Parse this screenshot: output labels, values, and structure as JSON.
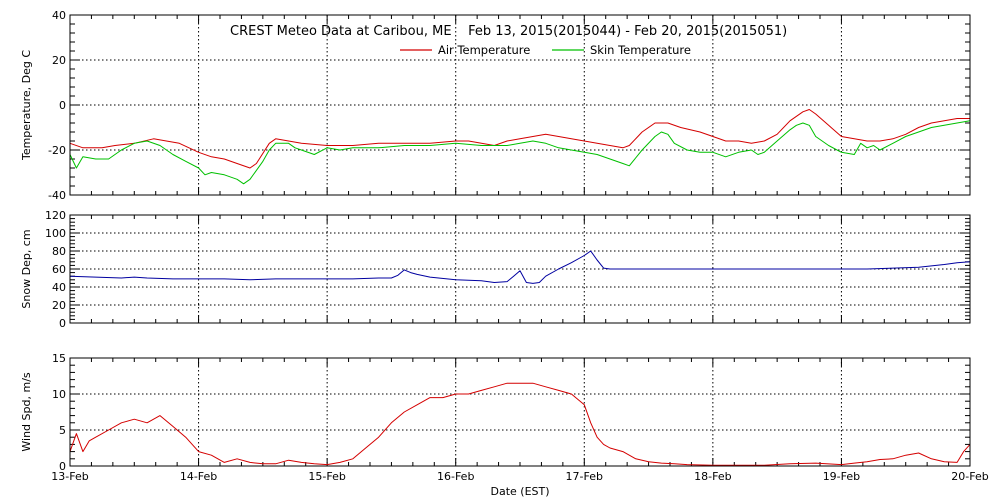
{
  "title": "CREST Meteo Data at Caribou, ME    Feb 13, 2015(2015044) - Feb 20, 2015(2015051)",
  "xlabel": "Date (EST)",
  "x_ticks": [
    "13-Feb",
    "14-Feb",
    "15-Feb",
    "16-Feb",
    "17-Feb",
    "18-Feb",
    "19-Feb",
    "20-Feb"
  ],
  "colors": {
    "air": "#d40000",
    "skin": "#00c000",
    "snow": "#0000a0",
    "wind": "#d40000",
    "grid": "#000000"
  },
  "chart_data": [
    {
      "type": "line",
      "ylabel": "Temperature, Deg C",
      "ylim": [
        -40,
        40
      ],
      "y_ticks": [
        "-40",
        "-20",
        "0",
        "20",
        "40"
      ],
      "x_unit": "days since 13-Feb",
      "xlim": [
        0,
        7
      ],
      "grid": true,
      "legend_position": "top-center",
      "series": [
        {
          "name": "Air Temperature",
          "color": "#d40000",
          "points": [
            [
              0,
              -17
            ],
            [
              0.1,
              -19
            ],
            [
              0.25,
              -19
            ],
            [
              0.35,
              -18
            ],
            [
              0.5,
              -17
            ],
            [
              0.65,
              -15
            ],
            [
              0.75,
              -16
            ],
            [
              0.85,
              -17
            ],
            [
              1.0,
              -21
            ],
            [
              1.1,
              -23
            ],
            [
              1.2,
              -24
            ],
            [
              1.3,
              -26
            ],
            [
              1.4,
              -28
            ],
            [
              1.45,
              -26
            ],
            [
              1.55,
              -17
            ],
            [
              1.6,
              -15
            ],
            [
              1.7,
              -16
            ],
            [
              1.8,
              -17
            ],
            [
              2.0,
              -18
            ],
            [
              2.2,
              -18
            ],
            [
              2.4,
              -17
            ],
            [
              2.6,
              -17
            ],
            [
              2.8,
              -17
            ],
            [
              3.0,
              -16
            ],
            [
              3.1,
              -16
            ],
            [
              3.2,
              -17
            ],
            [
              3.3,
              -18
            ],
            [
              3.4,
              -16
            ],
            [
              3.5,
              -15
            ],
            [
              3.6,
              -14
            ],
            [
              3.7,
              -13
            ],
            [
              3.8,
              -14
            ],
            [
              3.9,
              -15
            ],
            [
              4.0,
              -16
            ],
            [
              4.1,
              -17
            ],
            [
              4.2,
              -18
            ],
            [
              4.3,
              -19
            ],
            [
              4.35,
              -18
            ],
            [
              4.45,
              -12
            ],
            [
              4.55,
              -8
            ],
            [
              4.65,
              -8
            ],
            [
              4.75,
              -10
            ],
            [
              4.9,
              -12
            ],
            [
              5.0,
              -14
            ],
            [
              5.1,
              -16
            ],
            [
              5.2,
              -16
            ],
            [
              5.3,
              -17
            ],
            [
              5.4,
              -16
            ],
            [
              5.5,
              -13
            ],
            [
              5.6,
              -7
            ],
            [
              5.7,
              -3
            ],
            [
              5.75,
              -2
            ],
            [
              5.8,
              -4
            ],
            [
              5.9,
              -9
            ],
            [
              6.0,
              -14
            ],
            [
              6.1,
              -15
            ],
            [
              6.2,
              -16
            ],
            [
              6.3,
              -16
            ],
            [
              6.4,
              -15
            ],
            [
              6.5,
              -13
            ],
            [
              6.6,
              -10
            ],
            [
              6.7,
              -8
            ],
            [
              6.8,
              -7
            ],
            [
              6.9,
              -6
            ],
            [
              7.0,
              -6
            ]
          ]
        },
        {
          "name": "Skin Temperature",
          "color": "#00c000",
          "points": [
            [
              0,
              -22
            ],
            [
              0.05,
              -28
            ],
            [
              0.1,
              -23
            ],
            [
              0.2,
              -24
            ],
            [
              0.3,
              -24
            ],
            [
              0.4,
              -20
            ],
            [
              0.5,
              -17
            ],
            [
              0.6,
              -16
            ],
            [
              0.7,
              -18
            ],
            [
              0.8,
              -22
            ],
            [
              0.9,
              -25
            ],
            [
              1.0,
              -28
            ],
            [
              1.05,
              -31
            ],
            [
              1.1,
              -30
            ],
            [
              1.2,
              -31
            ],
            [
              1.3,
              -33
            ],
            [
              1.35,
              -35
            ],
            [
              1.4,
              -33
            ],
            [
              1.5,
              -25
            ],
            [
              1.55,
              -20
            ],
            [
              1.6,
              -17
            ],
            [
              1.7,
              -17
            ],
            [
              1.75,
              -19
            ],
            [
              1.8,
              -20
            ],
            [
              1.9,
              -22
            ],
            [
              2.0,
              -19
            ],
            [
              2.1,
              -20
            ],
            [
              2.2,
              -19
            ],
            [
              2.4,
              -19
            ],
            [
              2.6,
              -18
            ],
            [
              2.8,
              -18
            ],
            [
              3.0,
              -17
            ],
            [
              3.2,
              -18
            ],
            [
              3.4,
              -18
            ],
            [
              3.5,
              -17
            ],
            [
              3.6,
              -16
            ],
            [
              3.7,
              -17
            ],
            [
              3.8,
              -19
            ],
            [
              3.9,
              -20
            ],
            [
              4.0,
              -21
            ],
            [
              4.1,
              -22
            ],
            [
              4.2,
              -24
            ],
            [
              4.3,
              -26
            ],
            [
              4.35,
              -27
            ],
            [
              4.45,
              -20
            ],
            [
              4.55,
              -14
            ],
            [
              4.6,
              -12
            ],
            [
              4.65,
              -13
            ],
            [
              4.7,
              -17
            ],
            [
              4.8,
              -20
            ],
            [
              4.9,
              -21
            ],
            [
              5.0,
              -21
            ],
            [
              5.1,
              -23
            ],
            [
              5.2,
              -21
            ],
            [
              5.3,
              -20
            ],
            [
              5.35,
              -22
            ],
            [
              5.4,
              -21
            ],
            [
              5.5,
              -16
            ],
            [
              5.6,
              -11
            ],
            [
              5.65,
              -9
            ],
            [
              5.7,
              -8
            ],
            [
              5.75,
              -9
            ],
            [
              5.8,
              -14
            ],
            [
              5.9,
              -18
            ],
            [
              6.0,
              -21
            ],
            [
              6.1,
              -22
            ],
            [
              6.15,
              -17
            ],
            [
              6.2,
              -19
            ],
            [
              6.25,
              -18
            ],
            [
              6.3,
              -20
            ],
            [
              6.4,
              -17
            ],
            [
              6.5,
              -14
            ],
            [
              6.6,
              -12
            ],
            [
              6.7,
              -10
            ],
            [
              6.8,
              -9
            ],
            [
              6.9,
              -8
            ],
            [
              7.0,
              -7
            ]
          ]
        }
      ]
    },
    {
      "type": "line",
      "ylabel": "Snow Dep, cm",
      "ylim": [
        0,
        120
      ],
      "y_ticks": [
        "0",
        "20",
        "40",
        "60",
        "80",
        "100",
        "120"
      ],
      "x_unit": "days since 13-Feb",
      "xlim": [
        0,
        7
      ],
      "grid": true,
      "series": [
        {
          "color": "#0000a0",
          "points": [
            [
              0,
              52
            ],
            [
              0.2,
              51
            ],
            [
              0.4,
              50
            ],
            [
              0.5,
              51
            ],
            [
              0.6,
              50
            ],
            [
              0.8,
              49
            ],
            [
              1.0,
              49
            ],
            [
              1.2,
              49
            ],
            [
              1.4,
              48
            ],
            [
              1.6,
              49
            ],
            [
              1.8,
              49
            ],
            [
              2.0,
              49
            ],
            [
              2.2,
              49
            ],
            [
              2.4,
              50
            ],
            [
              2.5,
              50
            ],
            [
              2.55,
              53
            ],
            [
              2.6,
              59
            ],
            [
              2.65,
              56
            ],
            [
              2.7,
              54
            ],
            [
              2.8,
              51
            ],
            [
              3.0,
              48
            ],
            [
              3.2,
              47
            ],
            [
              3.3,
              45
            ],
            [
              3.4,
              46
            ],
            [
              3.45,
              52
            ],
            [
              3.5,
              58
            ],
            [
              3.55,
              45
            ],
            [
              3.6,
              44
            ],
            [
              3.65,
              45
            ],
            [
              3.7,
              52
            ],
            [
              3.8,
              60
            ],
            [
              3.9,
              67
            ],
            [
              4.0,
              75
            ],
            [
              4.05,
              80
            ],
            [
              4.1,
              70
            ],
            [
              4.15,
              61
            ],
            [
              4.2,
              60
            ],
            [
              4.5,
              60
            ],
            [
              4.8,
              60
            ],
            [
              5.0,
              60
            ],
            [
              5.3,
              60
            ],
            [
              5.6,
              60
            ],
            [
              5.9,
              60
            ],
            [
              6.2,
              60
            ],
            [
              6.4,
              61
            ],
            [
              6.6,
              62
            ],
            [
              6.8,
              65
            ],
            [
              6.9,
              67
            ],
            [
              7.0,
              68
            ]
          ]
        }
      ]
    },
    {
      "type": "line",
      "ylabel": "Wind Spd, m/s",
      "ylim": [
        0,
        15
      ],
      "y_ticks": [
        "0",
        "5",
        "10",
        "15"
      ],
      "x_unit": "days since 13-Feb",
      "xlim": [
        0,
        7
      ],
      "grid": true,
      "series": [
        {
          "color": "#d40000",
          "points": [
            [
              0,
              2
            ],
            [
              0.05,
              4.5
            ],
            [
              0.1,
              2
            ],
            [
              0.15,
              3.5
            ],
            [
              0.2,
              4
            ],
            [
              0.3,
              5
            ],
            [
              0.4,
              6
            ],
            [
              0.5,
              6.5
            ],
            [
              0.6,
              6
            ],
            [
              0.7,
              7
            ],
            [
              0.8,
              5.5
            ],
            [
              0.9,
              4
            ],
            [
              1.0,
              2
            ],
            [
              1.1,
              1.5
            ],
            [
              1.2,
              0.5
            ],
            [
              1.3,
              1
            ],
            [
              1.4,
              0.5
            ],
            [
              1.5,
              0.3
            ],
            [
              1.6,
              0.3
            ],
            [
              1.7,
              0.8
            ],
            [
              1.8,
              0.5
            ],
            [
              1.9,
              0.3
            ],
            [
              2.0,
              0.2
            ],
            [
              2.1,
              0.5
            ],
            [
              2.2,
              1
            ],
            [
              2.3,
              2.5
            ],
            [
              2.4,
              4
            ],
            [
              2.5,
              6
            ],
            [
              2.6,
              7.5
            ],
            [
              2.7,
              8.5
            ],
            [
              2.8,
              9.5
            ],
            [
              2.9,
              9.5
            ],
            [
              3.0,
              10
            ],
            [
              3.1,
              10
            ],
            [
              3.2,
              10.5
            ],
            [
              3.3,
              11
            ],
            [
              3.4,
              11.5
            ],
            [
              3.5,
              11.5
            ],
            [
              3.6,
              11.5
            ],
            [
              3.7,
              11
            ],
            [
              3.8,
              10.5
            ],
            [
              3.9,
              10
            ],
            [
              4.0,
              8.5
            ],
            [
              4.05,
              6
            ],
            [
              4.1,
              4
            ],
            [
              4.15,
              3
            ],
            [
              4.2,
              2.5
            ],
            [
              4.3,
              2
            ],
            [
              4.4,
              1
            ],
            [
              4.5,
              0.6
            ],
            [
              4.6,
              0.4
            ],
            [
              4.7,
              0.3
            ],
            [
              4.8,
              0.2
            ],
            [
              5.0,
              0.1
            ],
            [
              5.2,
              0.1
            ],
            [
              5.4,
              0.1
            ],
            [
              5.6,
              0.3
            ],
            [
              5.8,
              0.4
            ],
            [
              6.0,
              0.2
            ],
            [
              6.1,
              0.4
            ],
            [
              6.2,
              0.6
            ],
            [
              6.3,
              0.9
            ],
            [
              6.4,
              1
            ],
            [
              6.5,
              1.5
            ],
            [
              6.6,
              1.8
            ],
            [
              6.7,
              1
            ],
            [
              6.8,
              0.6
            ],
            [
              6.9,
              0.5
            ],
            [
              6.95,
              2
            ],
            [
              7.0,
              3
            ]
          ]
        }
      ]
    }
  ]
}
